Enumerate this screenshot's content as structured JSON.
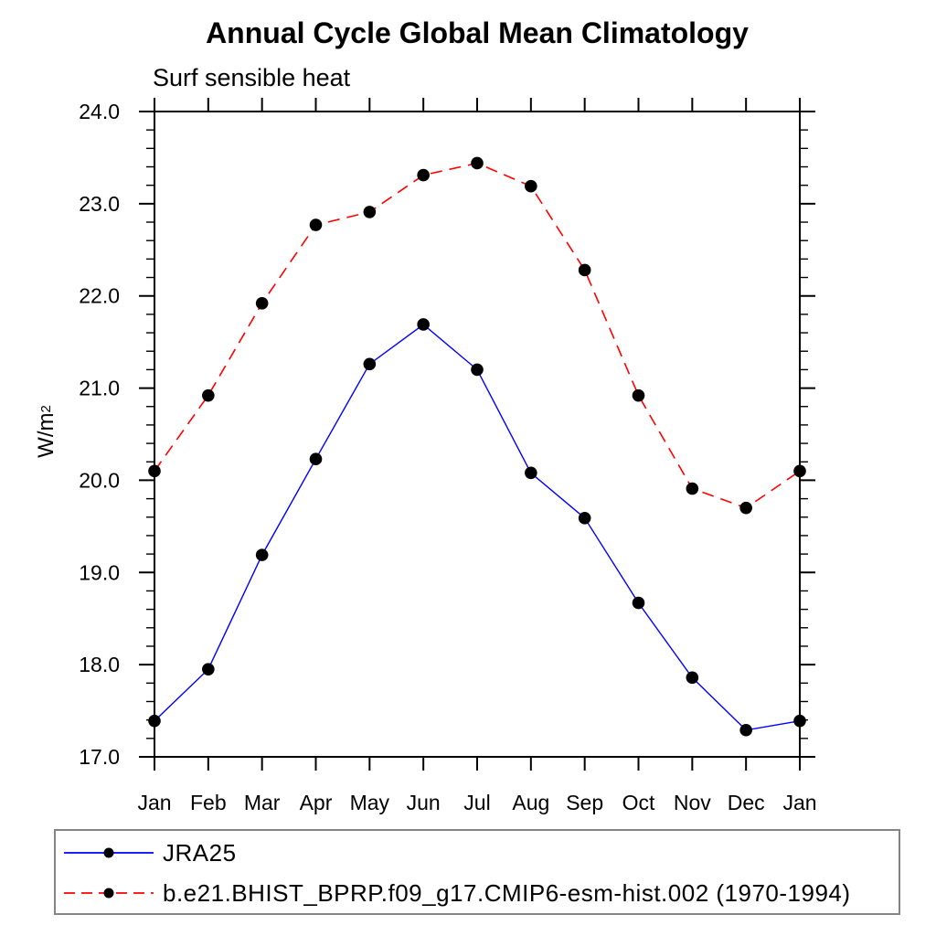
{
  "y_unit": {
    "base": "W/m",
    "exponent": "2"
  },
  "chart_data": {
    "type": "line",
    "title": "Annual Cycle Global Mean Climatology",
    "subtitle": "Surf sensible heat",
    "ylabel": "W/m^2",
    "categories": [
      "Jan",
      "Feb",
      "Mar",
      "Apr",
      "May",
      "Jun",
      "Jul",
      "Aug",
      "Sep",
      "Oct",
      "Nov",
      "Dec",
      "Jan"
    ],
    "ylim": [
      17.0,
      24.0
    ],
    "ytick_major_interval": 1.0,
    "ytick_minor_interval": 0.2,
    "ytick_labels": [
      "17.0",
      "18.0",
      "19.0",
      "20.0",
      "21.0",
      "22.0",
      "23.0",
      "24.0"
    ],
    "grid": false,
    "legend_position": "bottom-left",
    "axis_color": "#000000",
    "series": [
      {
        "name": "JRA25",
        "color": "#0000ff",
        "line_style": "solid",
        "line_width": 1.4,
        "marker": "circle",
        "marker_color": "#000000",
        "values": [
          17.39,
          17.95,
          19.19,
          20.23,
          21.26,
          21.69,
          21.2,
          20.08,
          19.59,
          18.67,
          17.86,
          17.29,
          17.39
        ]
      },
      {
        "name": "b.e21.BHIST_BPRP.f09_g17.CMIP6-esm-hist.002 (1970-1994)",
        "color": "#ff0000",
        "line_style": "dashed",
        "line_width": 1.6,
        "marker": "circle",
        "marker_color": "#000000",
        "values": [
          20.1,
          20.92,
          21.92,
          22.77,
          22.91,
          23.31,
          23.44,
          23.19,
          22.28,
          20.92,
          19.91,
          19.7,
          20.1
        ]
      }
    ]
  }
}
